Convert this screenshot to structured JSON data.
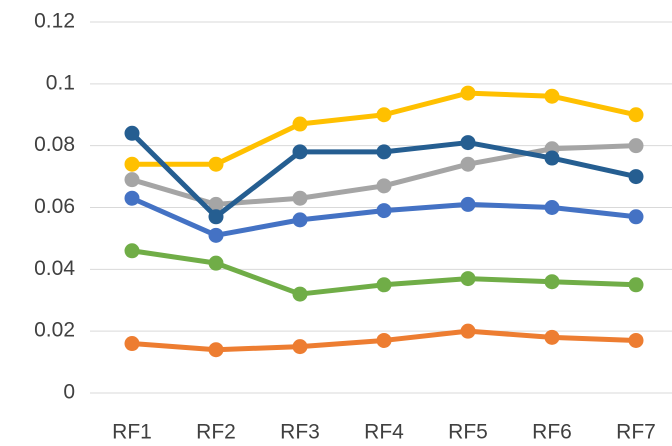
{
  "chart_data": {
    "type": "line",
    "categories": [
      "RF1",
      "RF2",
      "RF3",
      "RF4",
      "RF5",
      "RF6",
      "RF7"
    ],
    "series": [
      {
        "color": "#4472c4",
        "values": [
          0.063,
          0.051,
          0.056,
          0.059,
          0.061,
          0.06,
          0.057
        ]
      },
      {
        "color": "#ed7d31",
        "values": [
          0.016,
          0.014,
          0.015,
          0.017,
          0.02,
          0.018,
          0.017
        ]
      },
      {
        "color": "#a5a5a5",
        "values": [
          0.069,
          0.061,
          0.063,
          0.067,
          0.074,
          0.079,
          0.08
        ]
      },
      {
        "color": "#ffc000",
        "values": [
          0.074,
          0.074,
          0.087,
          0.09,
          0.097,
          0.096,
          0.09
        ]
      },
      {
        "color": "#70ad47",
        "values": [
          0.046,
          0.042,
          0.032,
          0.035,
          0.037,
          0.036,
          0.035
        ]
      },
      {
        "color": "#255e91",
        "values": [
          0.084,
          0.057,
          0.078,
          0.078,
          0.081,
          0.076,
          0.07
        ]
      }
    ],
    "ylim": [
      0,
      0.12
    ],
    "yticks": [
      0,
      0.02,
      0.04,
      0.06,
      0.08,
      0.1,
      0.12
    ],
    "grid": true
  }
}
